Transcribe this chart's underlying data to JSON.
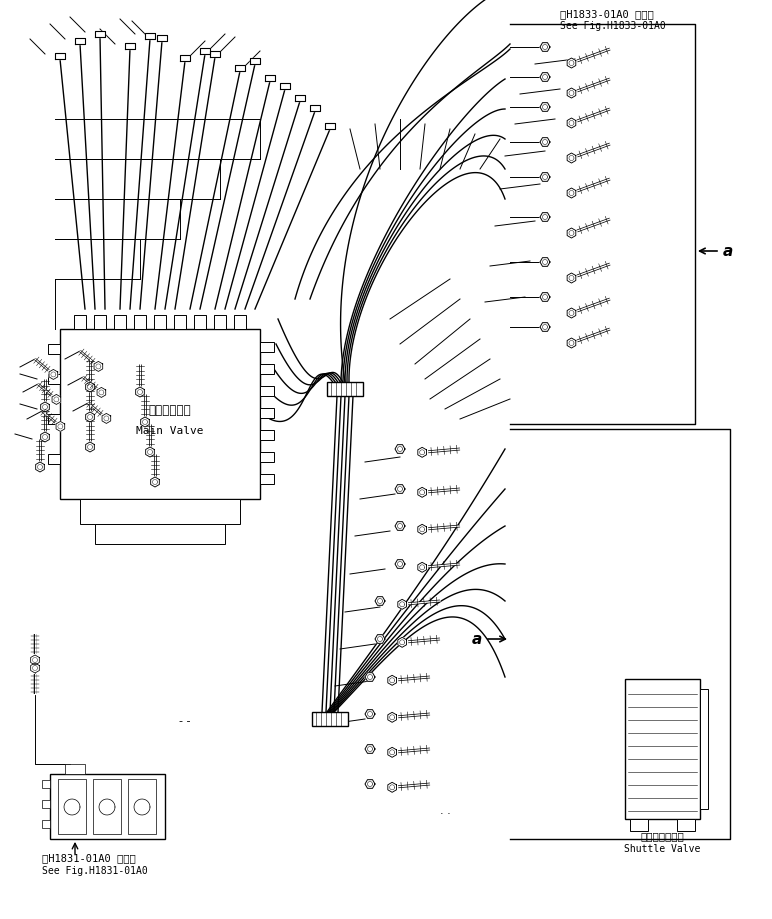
{
  "bg_color": "#ffffff",
  "line_color": "#000000",
  "title_top_right_jp": "第H1833-01A0 図参照",
  "title_top_right_en": "See Fig.H1833-01A0",
  "title_bottom_left_jp": "第H1831-01A0 図参照",
  "title_bottom_left_en": "See Fig.H1831-01A0",
  "main_valve_jp": "メインバルブ",
  "main_valve_en": "Main Valve",
  "shuttle_valve_jp": "シャトルバルブ",
  "shuttle_valve_en": "Shuttle Valve",
  "label_a": "a",
  "figsize": [
    7.72,
    9.19
  ],
  "dpi": 100
}
